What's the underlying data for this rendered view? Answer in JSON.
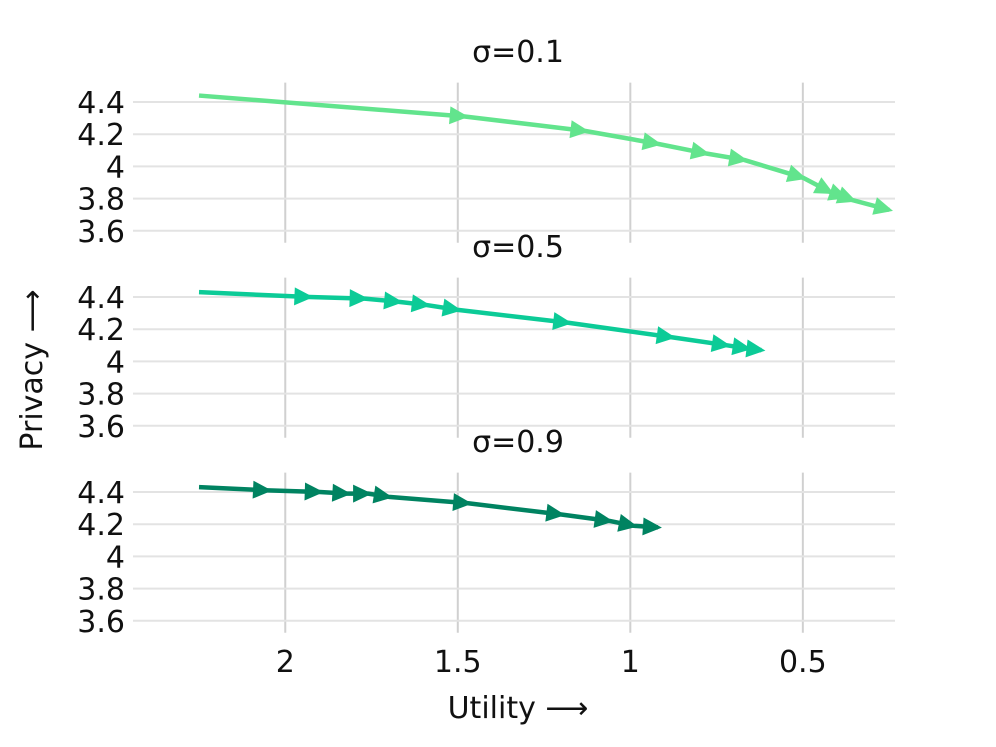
{
  "chart_data": {
    "type": "line",
    "xlabel": "Utility ⟶",
    "ylabel": "Privacy ⟶",
    "x_axis": {
      "reversed": true,
      "ticks": [
        2,
        1.5,
        1,
        0.5
      ],
      "tick_labels": [
        "2",
        "1.5",
        "1",
        "0.5"
      ],
      "range": [
        2.45,
        0.23
      ]
    },
    "y_axis": {
      "ticks": [
        3.6,
        3.8,
        4.0,
        4.2,
        4.4
      ],
      "tick_labels": [
        "3.6",
        "3.8",
        "4",
        "4.2",
        "4.4"
      ],
      "range": [
        3.6,
        4.48
      ]
    },
    "grid": true,
    "line_colors": [
      "#62e48d",
      "#0ccb97",
      "#008361"
    ],
    "panels": [
      {
        "title": "σ=0.1",
        "x": [
          2.25,
          1.48,
          1.13,
          0.92,
          0.78,
          0.67,
          0.5,
          0.42,
          0.38,
          0.355,
          0.25
        ],
        "y": [
          4.44,
          4.31,
          4.22,
          4.14,
          4.08,
          4.04,
          3.93,
          3.84,
          3.81,
          3.79,
          3.73
        ]
      },
      {
        "title": "σ=0.5",
        "x": [
          2.25,
          1.93,
          1.77,
          1.67,
          1.59,
          1.5,
          1.18,
          0.88,
          0.72,
          0.66,
          0.62
        ],
        "y": [
          4.43,
          4.4,
          4.39,
          4.37,
          4.35,
          4.32,
          4.24,
          4.15,
          4.1,
          4.08,
          4.07
        ]
      },
      {
        "title": "σ=0.9",
        "x": [
          2.25,
          2.05,
          1.9,
          1.82,
          1.76,
          1.7,
          1.47,
          1.2,
          1.06,
          0.99,
          0.92
        ],
        "y": [
          4.43,
          4.41,
          4.4,
          4.39,
          4.39,
          4.37,
          4.33,
          4.26,
          4.22,
          4.19,
          4.18
        ]
      }
    ]
  }
}
